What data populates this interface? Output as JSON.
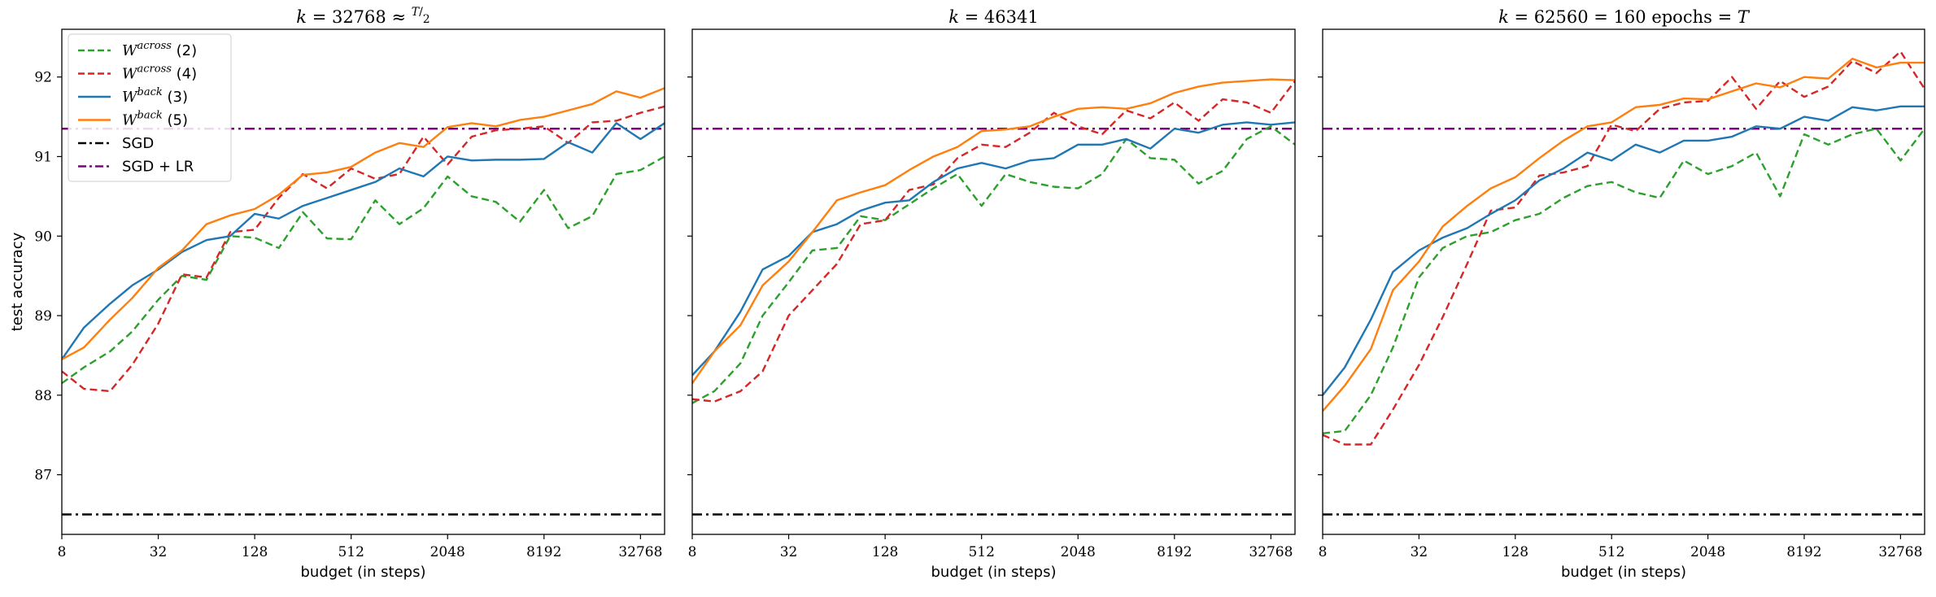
{
  "chart_data": {
    "type": "line",
    "ylabel": "test accuracy",
    "xlabel": "budget (in steps)",
    "x_scale": "log2",
    "x": [
      8,
      11,
      16,
      22,
      32,
      45,
      64,
      90,
      128,
      181,
      256,
      362,
      512,
      724,
      1024,
      1448,
      2048,
      2896,
      4096,
      5793,
      8192,
      11585,
      16384,
      23170,
      32768,
      46341
    ],
    "xticks": [
      8,
      32,
      128,
      512,
      2048,
      8192,
      32768
    ],
    "xtick_labels": [
      "8",
      "32",
      "128",
      "512",
      "2048",
      "8192",
      "32768"
    ],
    "ylim": [
      86.25,
      92.6
    ],
    "yticks": [
      87,
      88,
      89,
      90,
      91,
      92
    ],
    "ytick_labels": [
      "87",
      "88",
      "89",
      "90",
      "91",
      "92"
    ],
    "legend": {
      "placement": "upper-left",
      "entries": [
        {
          "label_main": "W",
          "label_sup": "across",
          "label_tail": " (2)",
          "color": "#2ca02c",
          "dash": "dashed"
        },
        {
          "label_main": "W",
          "label_sup": "across",
          "label_tail": " (4)",
          "color": "#d62728",
          "dash": "dashed"
        },
        {
          "label_main": "W",
          "label_sup": "back",
          "label_tail": " (3)",
          "color": "#1f77b4",
          "dash": "solid"
        },
        {
          "label_main": "W",
          "label_sup": "back",
          "label_tail": " (5)",
          "color": "#ff7f0e",
          "dash": "solid"
        },
        {
          "label_main": "SGD",
          "label_sup": "",
          "label_tail": "",
          "color": "#000000",
          "dash": "dashdot"
        },
        {
          "label_main": "SGD + LR",
          "label_sup": "",
          "label_tail": "",
          "color": "#800080",
          "dash": "dashdot"
        }
      ]
    },
    "reference_lines": [
      {
        "name": "SGD",
        "y": 86.5,
        "color": "#000000"
      },
      {
        "name": "SGD + LR",
        "y": 91.35,
        "color": "#800080"
      }
    ],
    "panels": [
      {
        "title": "k = 32768 ≈ T/2",
        "title_parts": {
          "k": "k",
          "eq": " = 32768 ≈ ",
          "num": "T",
          "den": "2"
        },
        "series": [
          {
            "values": [
              88.15,
              88.35,
              88.55,
              88.8,
              89.2,
              89.5,
              89.45,
              90.0,
              89.98,
              89.85,
              90.3,
              89.97,
              89.96,
              90.45,
              90.15,
              90.35,
              90.75,
              90.5,
              90.43,
              90.18,
              90.58,
              90.1,
              90.25,
              90.78,
              90.83,
              91.0
            ]
          },
          {
            "values": [
              88.3,
              88.08,
              88.05,
              88.38,
              88.9,
              89.52,
              89.48,
              90.05,
              90.08,
              90.48,
              90.78,
              90.6,
              90.85,
              90.72,
              90.78,
              91.25,
              90.9,
              91.25,
              91.33,
              91.35,
              91.38,
              91.17,
              91.43,
              91.45,
              91.55,
              91.63
            ]
          },
          {
            "values": [
              88.45,
              88.85,
              89.15,
              89.38,
              89.58,
              89.8,
              89.95,
              90.0,
              90.28,
              90.22,
              90.38,
              90.48,
              90.58,
              90.68,
              90.85,
              90.75,
              91.0,
              90.95,
              90.96,
              90.96,
              90.97,
              91.18,
              91.05,
              91.42,
              91.22,
              91.42
            ]
          },
          {
            "values": [
              88.45,
              88.6,
              88.95,
              89.22,
              89.6,
              89.82,
              90.15,
              90.26,
              90.34,
              90.52,
              90.77,
              90.8,
              90.87,
              91.05,
              91.17,
              91.12,
              91.37,
              91.42,
              91.38,
              91.46,
              91.5,
              91.58,
              91.66,
              91.82,
              91.74,
              91.86
            ]
          }
        ]
      },
      {
        "title": "k = 46341",
        "title_parts": {
          "k": "k",
          "eq": " = 46341",
          "num": "",
          "den": ""
        },
        "series": [
          {
            "values": [
              87.9,
              88.05,
              88.4,
              89.0,
              89.42,
              89.82,
              89.85,
              90.25,
              90.2,
              90.4,
              90.6,
              90.78,
              90.38,
              90.78,
              90.68,
              90.62,
              90.6,
              90.78,
              91.22,
              90.98,
              90.96,
              90.66,
              90.82,
              91.22,
              91.38,
              91.15
            ]
          },
          {
            "values": [
              87.95,
              87.92,
              88.05,
              88.3,
              89.0,
              89.32,
              89.65,
              90.15,
              90.2,
              90.58,
              90.65,
              90.98,
              91.15,
              91.12,
              91.3,
              91.55,
              91.38,
              91.28,
              91.58,
              91.48,
              91.68,
              91.45,
              91.72,
              91.68,
              91.55,
              91.95
            ]
          },
          {
            "values": [
              88.25,
              88.55,
              89.05,
              89.58,
              89.75,
              90.05,
              90.15,
              90.32,
              90.42,
              90.45,
              90.68,
              90.85,
              90.92,
              90.85,
              90.95,
              90.98,
              91.15,
              91.15,
              91.22,
              91.1,
              91.35,
              91.3,
              91.4,
              91.43,
              91.4,
              91.43
            ]
          },
          {
            "values": [
              88.15,
              88.55,
              88.88,
              89.38,
              89.68,
              90.05,
              90.45,
              90.55,
              90.64,
              90.83,
              91.0,
              91.12,
              91.32,
              91.34,
              91.38,
              91.5,
              91.6,
              91.62,
              91.6,
              91.67,
              91.8,
              91.88,
              91.93,
              91.95,
              91.97,
              91.96
            ]
          }
        ]
      },
      {
        "title": "k = 62560 = 160 epochs = T",
        "title_parts": {
          "k": "k",
          "eq": " = 62560 = 160 epochs = ",
          "num": "",
          "den": "",
          "tail": "T"
        },
        "series": [
          {
            "values": [
              87.52,
              87.55,
              88.0,
              88.6,
              89.48,
              89.85,
              90.0,
              90.05,
              90.2,
              90.28,
              90.48,
              90.63,
              90.68,
              90.55,
              90.48,
              90.95,
              90.78,
              90.88,
              91.05,
              90.5,
              91.28,
              91.15,
              91.28,
              91.35,
              90.95,
              91.35
            ]
          },
          {
            "values": [
              87.5,
              87.38,
              87.38,
              87.82,
              88.38,
              88.98,
              89.65,
              90.32,
              90.36,
              90.76,
              90.8,
              90.88,
              91.4,
              91.32,
              91.6,
              91.68,
              91.7,
              92.0,
              91.6,
              91.95,
              91.75,
              91.88,
              92.2,
              92.05,
              92.32,
              91.85
            ]
          },
          {
            "values": [
              88.0,
              88.35,
              88.95,
              89.55,
              89.82,
              89.98,
              90.1,
              90.28,
              90.45,
              90.7,
              90.85,
              91.05,
              90.95,
              91.15,
              91.05,
              91.2,
              91.2,
              91.25,
              91.38,
              91.35,
              91.5,
              91.45,
              91.62,
              91.58,
              91.63,
              91.63
            ]
          },
          {
            "values": [
              87.8,
              88.12,
              88.58,
              89.32,
              89.68,
              90.12,
              90.38,
              90.6,
              90.74,
              90.98,
              91.2,
              91.38,
              91.43,
              91.62,
              91.65,
              91.73,
              91.72,
              91.82,
              91.92,
              91.87,
              92.0,
              91.98,
              92.23,
              92.12,
              92.18,
              92.18
            ]
          }
        ]
      }
    ]
  }
}
